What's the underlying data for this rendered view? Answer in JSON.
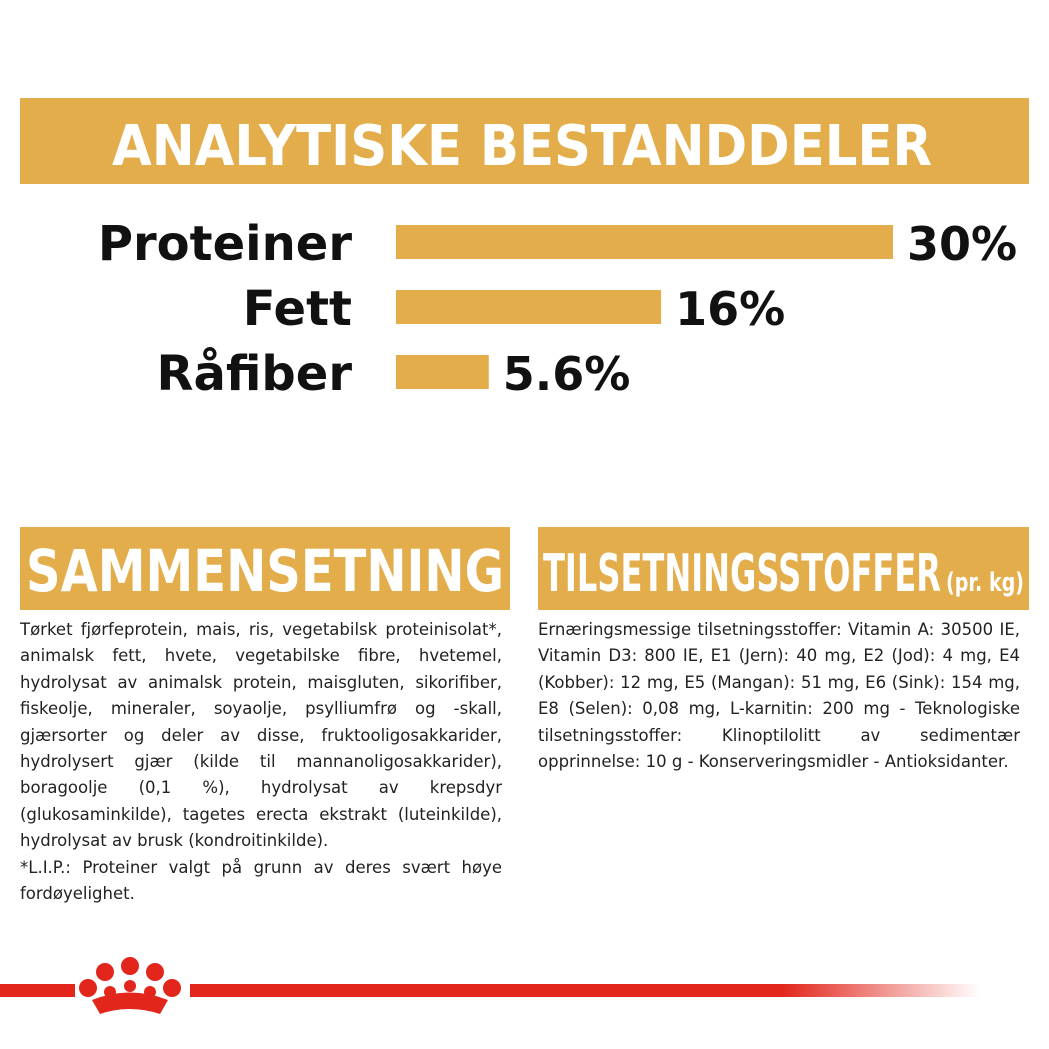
{
  "chart_data": {
    "type": "bar",
    "orientation": "horizontal",
    "title": "ANALYTISKE BESTANDDELER",
    "categories": [
      "Proteiner",
      "Fett",
      "Råfiber"
    ],
    "values": [
      30,
      16,
      5.6
    ],
    "value_labels": [
      "30%",
      "16%",
      "5.6%"
    ],
    "color": "#e3ad4c"
  },
  "composition": {
    "title": "SAMMENSETNING",
    "text": "Tørket fjørfeprotein, mais, ris, vegetabilsk proteinisolat*, animalsk fett, hvete, vegetabilske fibre, hvetemel, hydrolysat av animalsk protein, maisgluten, sikorifiber, fiskeolje, mineraler, soyaolje, psylliumfrø og -skall, gjærsorter og deler av disse, fruktooligosakkarider, hydrolysert gjær (kilde til mannanoligosakkarider), boragoolje (0,1 %), hydrolysat av krepsdyr (glukosaminkilde), tagetes erecta ekstrakt (luteinkilde), hydrolysat av brusk (kondroitinkilde).",
    "note": "*L.I.P.: Proteiner valgt på grunn av deres svært høye fordøyelighet."
  },
  "additives": {
    "title": "TILSETNINGSSTOFFER",
    "unit": "(pr. kg)",
    "text": "Ernæringsmessige tilsetningsstoffer: Vitamin A: 30500 IE, Vitamin D3: 800 IE, E1 (Jern): 40 mg, E2 (Jod): 4 mg, E4 (Kobber): 12 mg, E5 (Mangan): 51 mg, E6 (Sink): 154 mg, E8 (Selen): 0,08 mg, L-karnitin: 200 mg - Teknologiske tilsetningsstoffer: Klinoptilolitt av sedimentær opprinnelse: 10 g - Konserveringsmidler - Antioksidanter."
  }
}
